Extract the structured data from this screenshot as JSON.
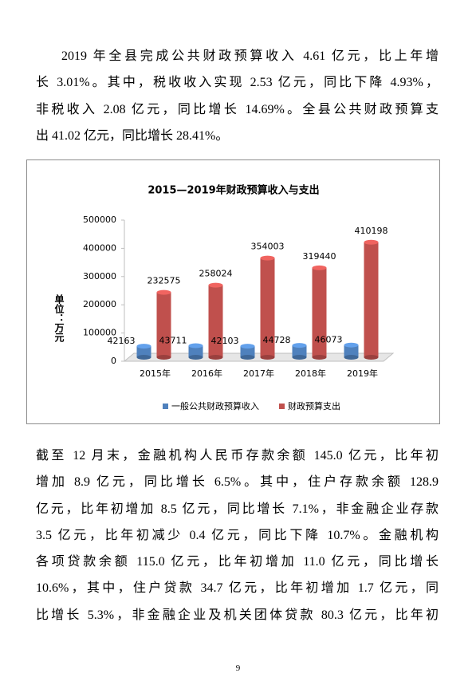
{
  "paragraphs": [
    {
      "lines": [
        "2019 年全县完成公共财政预算收入 4.61 亿元，比上年增",
        "长 3.01%。其中，税收收入实现 2.53 亿元，同比下降 4.93%，",
        "非税收入 2.08 亿元，同比增长 14.69%。全县公共财政预算支",
        "出 41.02 亿元，同比增长 28.41%。"
      ]
    },
    {
      "lines": [
        "截至 12 月末，金融机构人民币存款余额 145.0 亿元，比年初",
        "增加 8.9 亿元，同比增长 6.5%。其中，住户存款余额 128.9",
        "亿元，比年初增加 8.5 亿元，同比增长 7.1%，非金融企业存款",
        "3.5 亿元，比年初减少 0.4 亿元，同比下降 10.7%。金融机构",
        "各项贷款余额 115.0 亿元，比年初增加 11.0 亿元，同比增长",
        "10.6%，其中，住户贷款 34.7 亿元，比年初增加 1.7 亿元，同",
        "比增长 5.3%，非金融企业及机关团体贷款 80.3 亿元，比年初"
      ]
    }
  ],
  "chart_data": {
    "type": "bar",
    "title": "2015—2019年财政预算收入与支出",
    "y_label": "单位：万元",
    "categories": [
      "2015年",
      "2016年",
      "2017年",
      "2018年",
      "2019年"
    ],
    "series": [
      {
        "name": "一般公共财政预算收入",
        "color": "#4f81bd",
        "values": [
          42163,
          43711,
          42103,
          44728,
          46073
        ]
      },
      {
        "name": "财政预算支出",
        "color": "#c0504d",
        "values": [
          232575,
          258024,
          354003,
          319440,
          410198
        ]
      }
    ],
    "ylim": [
      0,
      500000
    ],
    "yticks": [
      0,
      100000,
      200000,
      300000,
      400000,
      500000
    ],
    "legend": "bottom"
  },
  "page_number": "9"
}
